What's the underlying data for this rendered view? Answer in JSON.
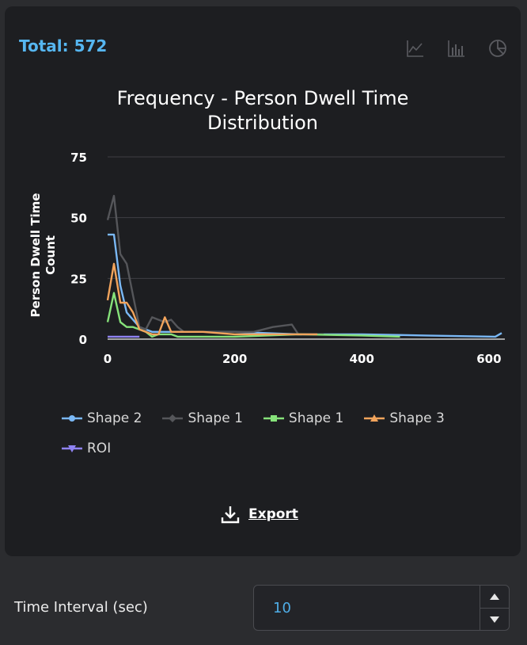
{
  "header": {
    "total_label": "Total: 572"
  },
  "toolbar": {
    "icons": [
      "line-chart-icon",
      "bar-chart-icon",
      "pie-chart-icon"
    ]
  },
  "colors": {
    "accent": "#56b6f0",
    "series": [
      "#7ab8f5",
      "#55565a",
      "#86e27a",
      "#f2a45c",
      "#8f83f2"
    ]
  },
  "chart_data": {
    "type": "line",
    "title_line1": "Frequency - Person Dwell Time",
    "title_line2": "Distribution",
    "xlabel": "",
    "ylabel_line1": "Person Dwell Time",
    "ylabel_line2": "Count",
    "xlim": [
      0,
      625
    ],
    "ylim": [
      0,
      75
    ],
    "x_ticks": [
      0,
      200,
      400,
      600
    ],
    "y_ticks": [
      0,
      25,
      50,
      75
    ],
    "grid": true,
    "legend_position": "bottom",
    "series": [
      {
        "name": "Shape 2",
        "marker": "circle",
        "points": [
          [
            0,
            43
          ],
          [
            10,
            43
          ],
          [
            20,
            22
          ],
          [
            30,
            11
          ],
          [
            40,
            8
          ],
          [
            50,
            5
          ],
          [
            60,
            4
          ],
          [
            70,
            3
          ],
          [
            80,
            3
          ],
          [
            90,
            3
          ],
          [
            100,
            3
          ],
          [
            120,
            3
          ],
          [
            150,
            3
          ],
          [
            200,
            3
          ],
          [
            300,
            2
          ],
          [
            400,
            2
          ],
          [
            500,
            1.5
          ],
          [
            610,
            1
          ],
          [
            620,
            2.5
          ]
        ]
      },
      {
        "name": "Shape 1",
        "marker": "diamond",
        "points": [
          [
            0,
            49
          ],
          [
            10,
            59
          ],
          [
            20,
            35
          ],
          [
            30,
            31
          ],
          [
            40,
            18
          ],
          [
            50,
            5
          ],
          [
            60,
            4
          ],
          [
            70,
            9
          ],
          [
            80,
            8
          ],
          [
            90,
            7
          ],
          [
            100,
            8
          ],
          [
            110,
            5
          ],
          [
            120,
            3
          ],
          [
            150,
            3
          ],
          [
            200,
            3
          ],
          [
            230,
            3
          ],
          [
            260,
            5
          ],
          [
            290,
            6
          ],
          [
            300,
            2
          ],
          [
            340,
            2
          ]
        ]
      },
      {
        "name": "Shape 1",
        "marker": "square",
        "points": [
          [
            0,
            7
          ],
          [
            10,
            19
          ],
          [
            20,
            7
          ],
          [
            30,
            5
          ],
          [
            40,
            5
          ],
          [
            50,
            4
          ],
          [
            60,
            3
          ],
          [
            70,
            1
          ],
          [
            80,
            2
          ],
          [
            90,
            2
          ],
          [
            100,
            2
          ],
          [
            110,
            1
          ],
          [
            150,
            1
          ],
          [
            200,
            1
          ],
          [
            300,
            2
          ],
          [
            400,
            1.5
          ],
          [
            460,
            1
          ]
        ]
      },
      {
        "name": "Shape 3",
        "marker": "triangle",
        "points": [
          [
            0,
            16
          ],
          [
            10,
            31
          ],
          [
            20,
            15
          ],
          [
            30,
            15
          ],
          [
            40,
            11
          ],
          [
            50,
            4
          ],
          [
            60,
            3
          ],
          [
            70,
            2
          ],
          [
            80,
            2
          ],
          [
            90,
            9
          ],
          [
            100,
            3
          ],
          [
            110,
            3
          ],
          [
            130,
            3
          ],
          [
            150,
            3
          ],
          [
            200,
            2
          ],
          [
            250,
            2
          ],
          [
            300,
            2
          ],
          [
            330,
            2
          ]
        ]
      },
      {
        "name": "ROI",
        "marker": "triangle-down",
        "points": [
          [
            0,
            1
          ],
          [
            50,
            1
          ]
        ]
      }
    ]
  },
  "export": {
    "label": "Export"
  },
  "footer": {
    "interval_label": "Time Interval (sec)",
    "interval_value": "10"
  }
}
